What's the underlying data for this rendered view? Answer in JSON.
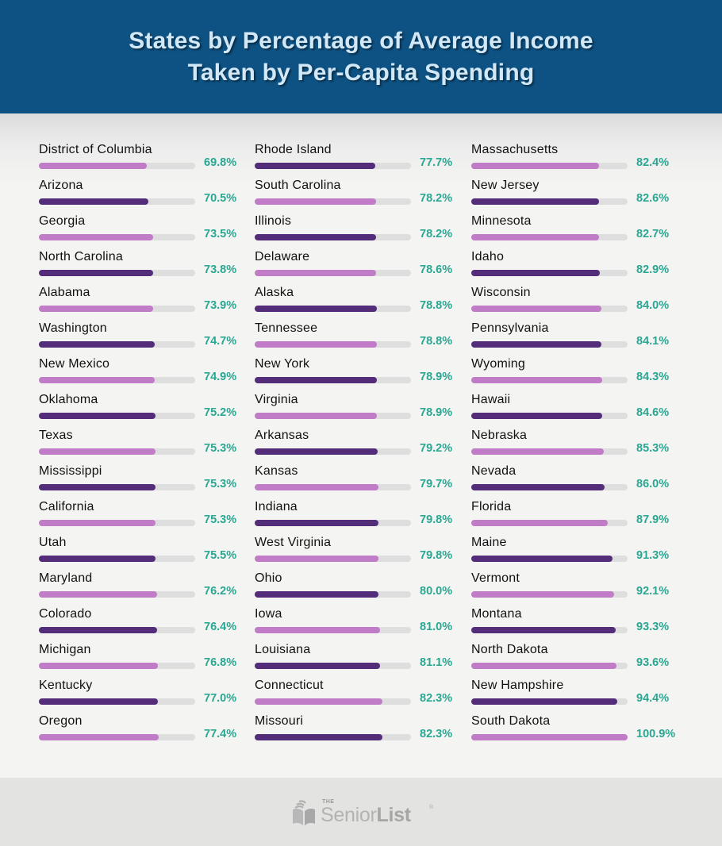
{
  "header": {
    "title_line1": "States by Percentage of Average Income",
    "title_line2": "Taken by Per-Capita Spending"
  },
  "colors": {
    "header_bg": "#0e5283",
    "title_text": "#d2e8f7",
    "bar_light": "#c07cc7",
    "bar_dark": "#542d7a",
    "bar_track": "#dedede",
    "value_text": "#2aa792"
  },
  "chart_data": {
    "type": "bar",
    "orientation": "horizontal",
    "title": "States by Percentage of Average Income Taken by Per-Capita Spending",
    "unit": "%",
    "xlim": [
      0,
      100.9
    ],
    "categories": [
      "District of Columbia",
      "Arizona",
      "Georgia",
      "North Carolina",
      "Alabama",
      "Washington",
      "New Mexico",
      "Oklahoma",
      "Texas",
      "Mississippi",
      "California",
      "Utah",
      "Maryland",
      "Colorado",
      "Michigan",
      "Kentucky",
      "Oregon",
      "Rhode Island",
      "South Carolina",
      "Illinois",
      "Delaware",
      "Alaska",
      "Tennessee",
      "New York",
      "Virginia",
      "Arkansas",
      "Kansas",
      "Indiana",
      "West Virginia",
      "Ohio",
      "Iowa",
      "Louisiana",
      "Connecticut",
      "Missouri",
      "Massachusetts",
      "New Jersey",
      "Minnesota",
      "Idaho",
      "Wisconsin",
      "Pennsylvania",
      "Wyoming",
      "Hawaii",
      "Nebraska",
      "Nevada",
      "Florida",
      "Maine",
      "Vermont",
      "Montana",
      "North Dakota",
      "New Hampshire",
      "South Dakota"
    ],
    "values": [
      69.8,
      70.5,
      73.5,
      73.8,
      73.9,
      74.7,
      74.9,
      75.2,
      75.3,
      75.3,
      75.3,
      75.5,
      76.2,
      76.4,
      76.8,
      77.0,
      77.4,
      77.7,
      78.2,
      78.2,
      78.6,
      78.8,
      78.8,
      78.9,
      78.9,
      79.2,
      79.7,
      79.8,
      79.8,
      80.0,
      81.0,
      81.1,
      82.3,
      82.3,
      82.4,
      82.6,
      82.7,
      82.9,
      84.0,
      84.1,
      84.3,
      84.6,
      85.3,
      86.0,
      87.9,
      91.3,
      92.1,
      93.3,
      93.6,
      94.4,
      100.9
    ],
    "labels": [
      "69.8%",
      "70.5%",
      "73.5%",
      "73.8%",
      "73.9%",
      "74.7%",
      "74.9%",
      "75.2%",
      "75.3%",
      "75.3%",
      "75.3%",
      "75.5%",
      "76.2%",
      "76.4%",
      "76.8%",
      "77.0%",
      "77.4%",
      "77.7%",
      "78.2%",
      "78.2%",
      "78.6%",
      "78.8%",
      "78.8%",
      "78.9%",
      "78.9%",
      "79.2%",
      "79.7%",
      "79.8%",
      "79.8%",
      "80.0%",
      "81.0%",
      "81.1%",
      "82.3%",
      "82.3%",
      "82.4%",
      "82.6%",
      "82.7%",
      "82.9%",
      "84.0%",
      "84.1%",
      "84.3%",
      "84.6%",
      "85.3%",
      "86.0%",
      "87.9%",
      "91.3%",
      "92.1%",
      "93.3%",
      "93.6%",
      "94.4%",
      "100.9%"
    ]
  },
  "footer": {
    "logo_the": "THE",
    "logo_senior": "Senior",
    "logo_list": "List",
    "logo_mark": "®"
  }
}
